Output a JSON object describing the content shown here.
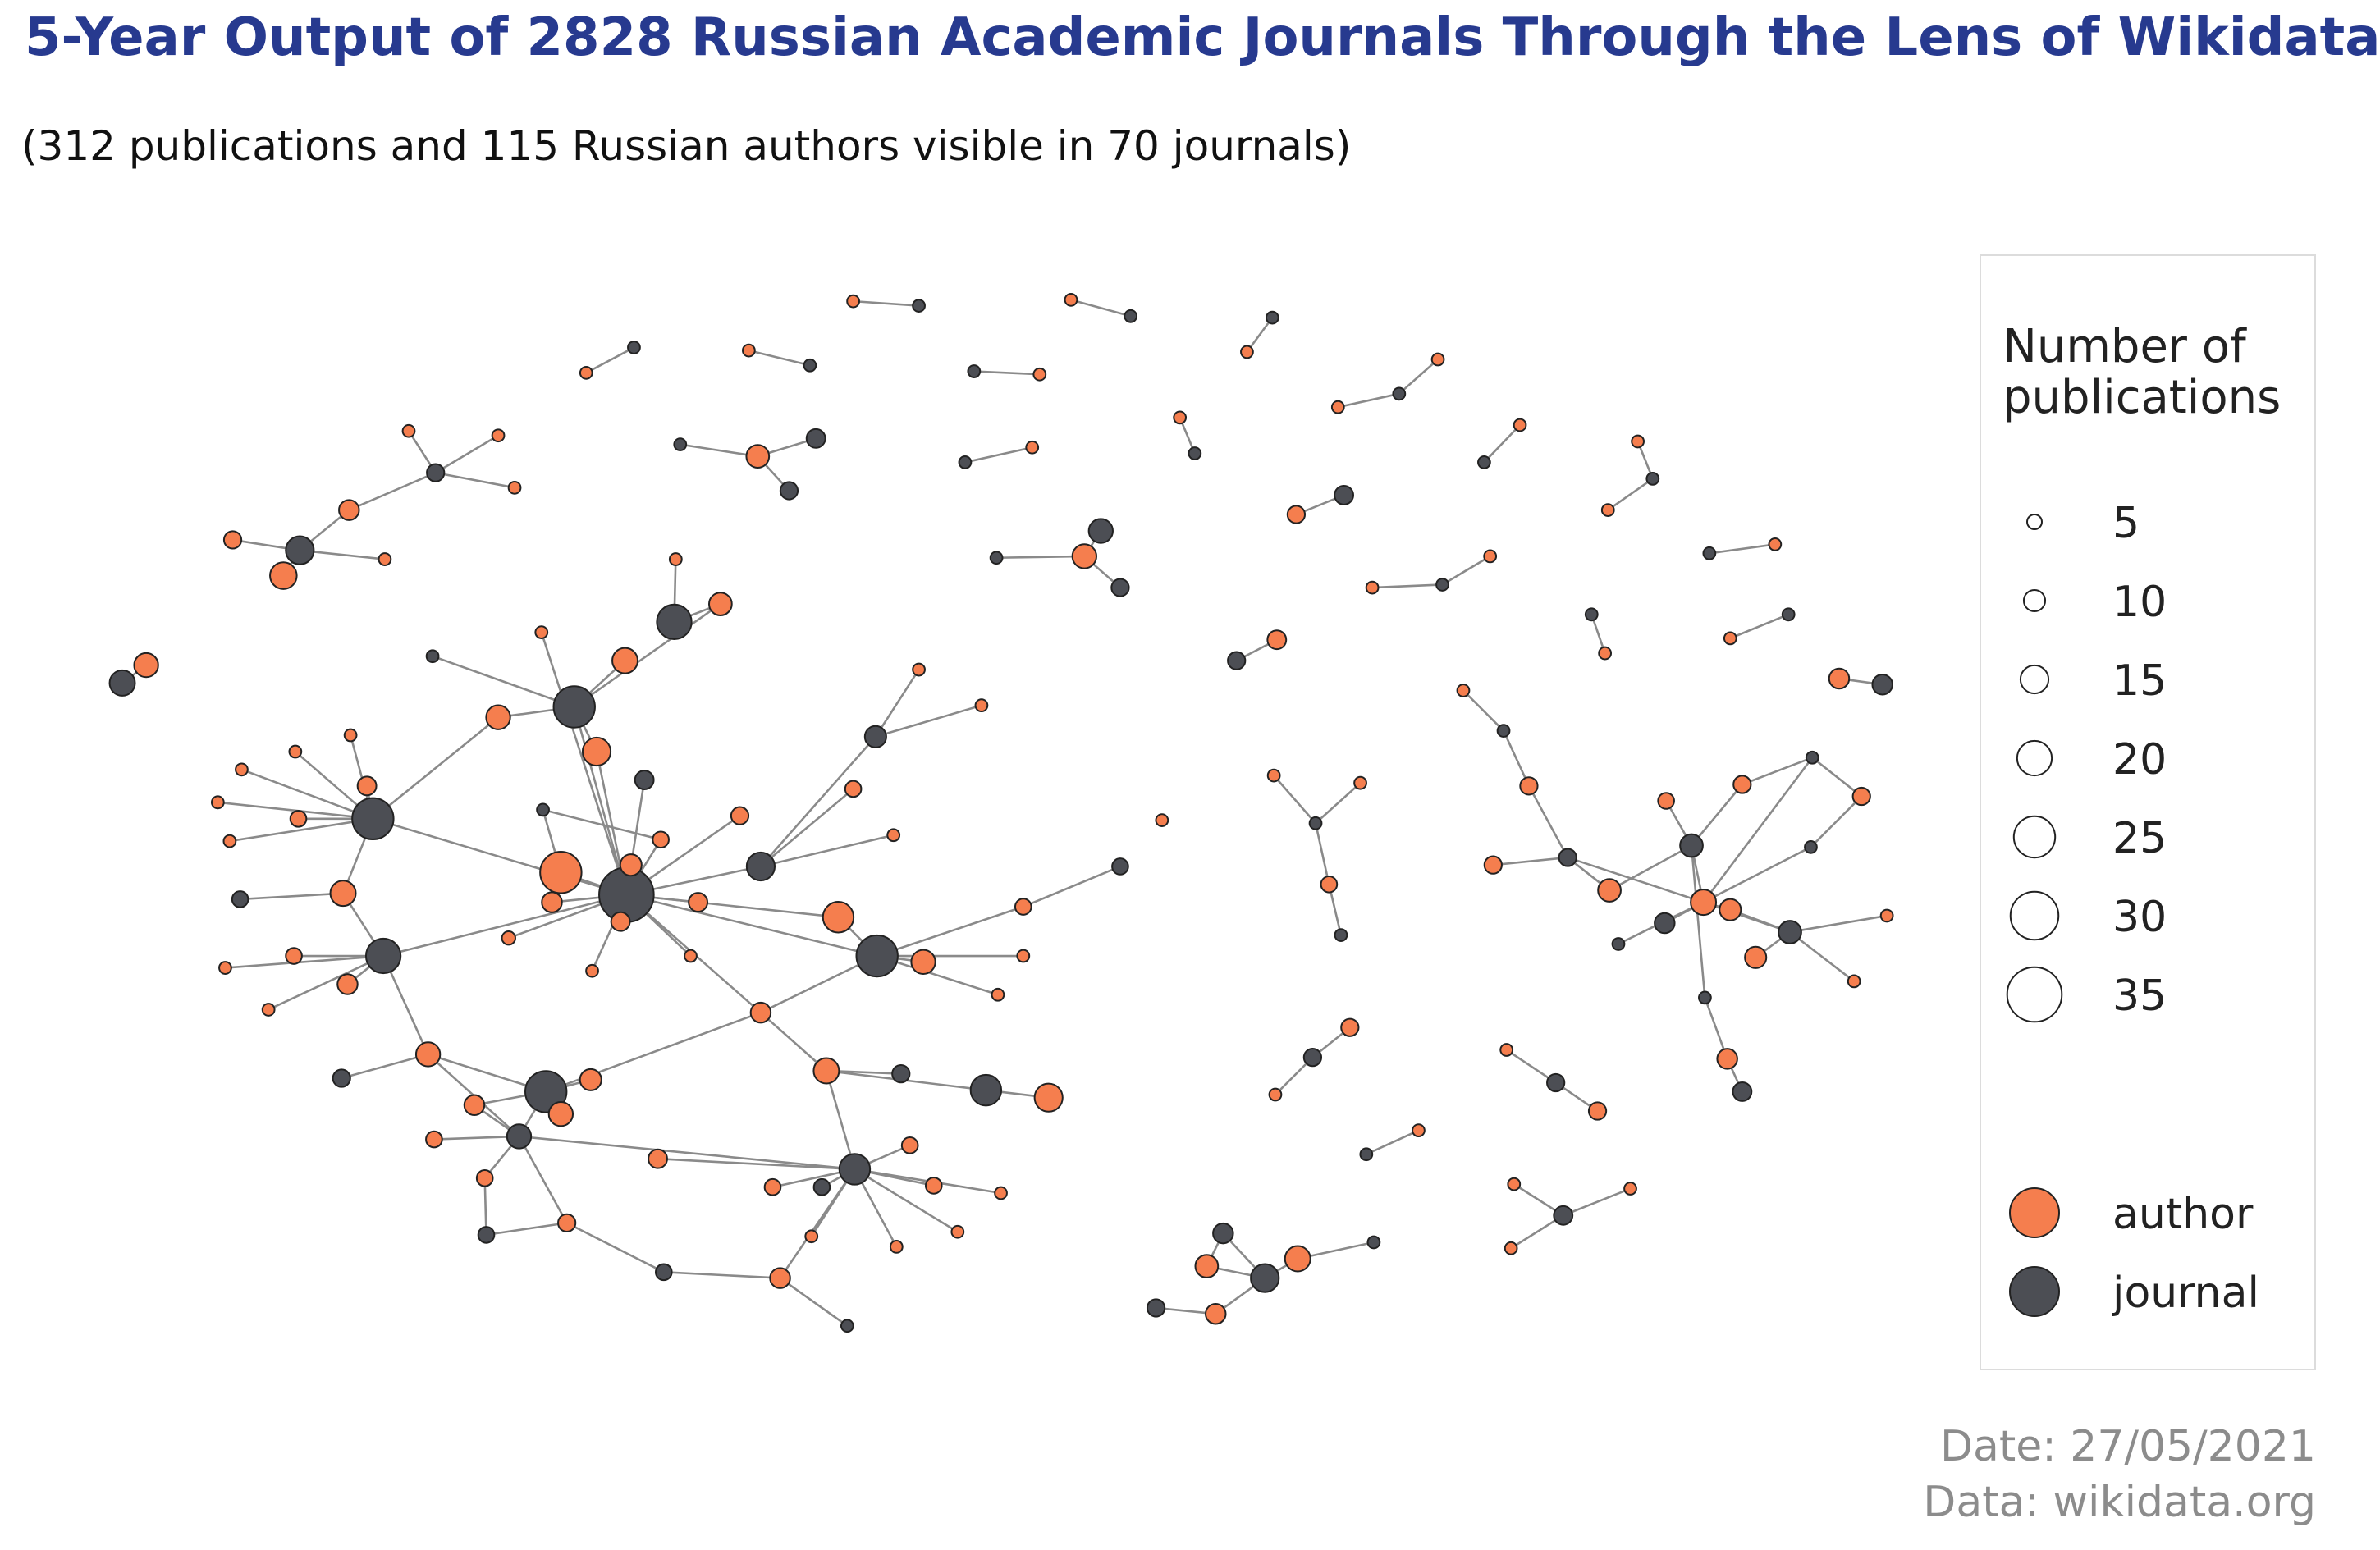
{
  "header": {
    "title": "5-Year Output of 2828 Russian Academic Journals Through the Lens of Wikidata",
    "subtitle": "(312 publications and 115 Russian authors visible in 70 journals)"
  },
  "legend": {
    "size_title_line1": "Number of",
    "size_title_line2": "publications",
    "size_entries": [
      {
        "label": "5",
        "value": 5
      },
      {
        "label": "10",
        "value": 10
      },
      {
        "label": "15",
        "value": 15
      },
      {
        "label": "20",
        "value": 20
      },
      {
        "label": "25",
        "value": 25
      },
      {
        "label": "30",
        "value": 30
      },
      {
        "label": "35",
        "value": 35
      }
    ],
    "type_entries": [
      {
        "label": "author",
        "type": "author"
      },
      {
        "label": "journal",
        "type": "journal"
      }
    ]
  },
  "footer": {
    "date": "Date: 27/05/2021",
    "source": "Data: wikidata.org"
  },
  "colors": {
    "author": "#f57e4e",
    "journal": "#4c4e54",
    "edge": "#8a8a8a",
    "title": "#273a8f",
    "footer": "#8c8c8c"
  }
}
